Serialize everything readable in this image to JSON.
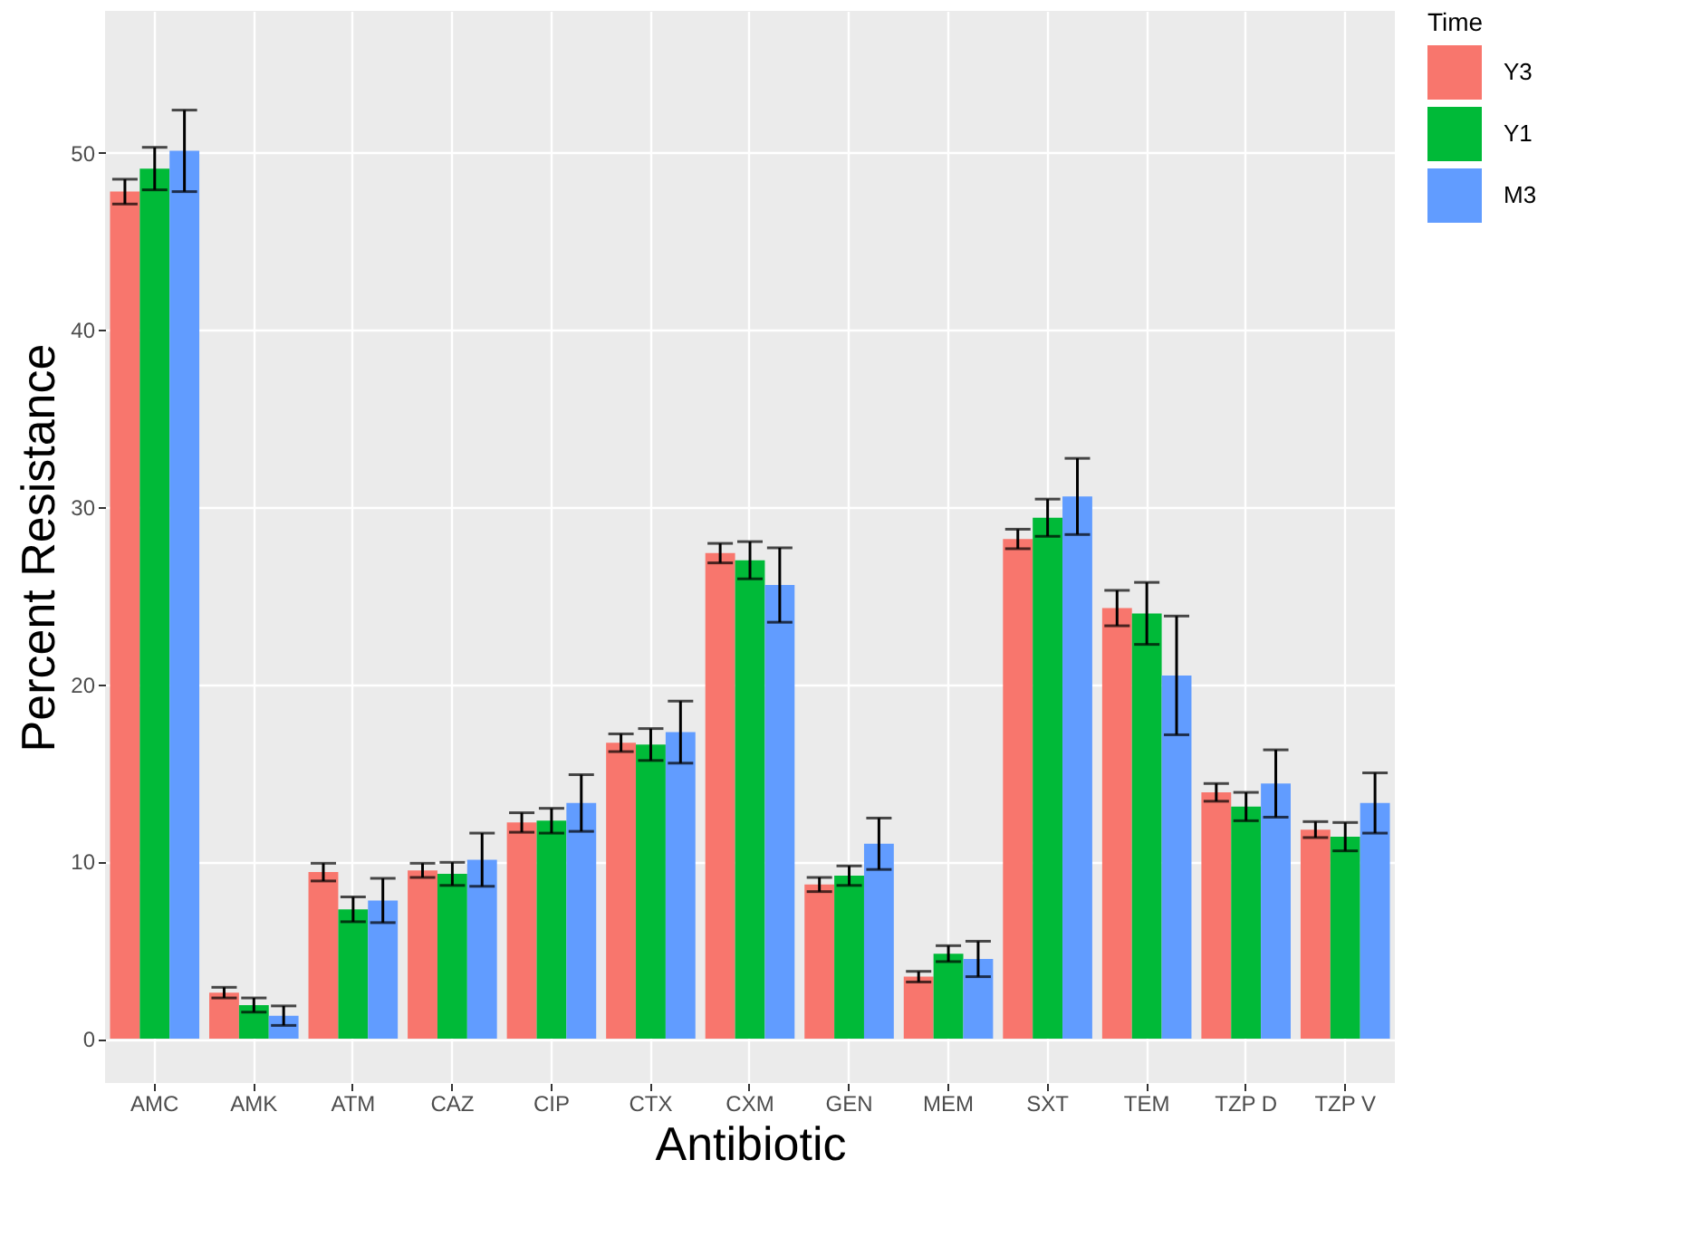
{
  "chart_data": {
    "type": "bar",
    "xlabel": "Antibiotic",
    "ylabel": "Percent Resistance",
    "legend_title": "Time",
    "legend": "right",
    "grid": true,
    "categories": [
      "AMC",
      "AMK",
      "ATM",
      "CAZ",
      "CIP",
      "CTX",
      "CXM",
      "GEN",
      "MEM",
      "SXT",
      "TEM",
      "TZP D",
      "TZP V"
    ],
    "ylim": [
      -2.5,
      58
    ],
    "yticks": [
      0,
      10,
      20,
      30,
      40,
      50
    ],
    "series": [
      {
        "name": "Y3",
        "color": "#f8766d",
        "values": [
          47.8,
          2.6,
          9.4,
          9.5,
          12.2,
          16.7,
          27.4,
          8.7,
          3.5,
          28.2,
          24.3,
          13.9,
          11.8
        ],
        "errors": [
          0.7,
          0.3,
          0.5,
          0.4,
          0.55,
          0.5,
          0.55,
          0.4,
          0.3,
          0.55,
          1.0,
          0.5,
          0.45
        ]
      },
      {
        "name": "Y1",
        "color": "#00ba38",
        "values": [
          49.1,
          1.9,
          7.3,
          9.3,
          12.3,
          16.6,
          27.0,
          9.2,
          4.8,
          29.4,
          24.0,
          13.1,
          11.4
        ],
        "errors": [
          1.2,
          0.4,
          0.7,
          0.65,
          0.7,
          0.9,
          1.05,
          0.55,
          0.45,
          1.05,
          1.75,
          0.8,
          0.8
        ]
      },
      {
        "name": "M3",
        "color": "#619cff",
        "values": [
          50.1,
          1.3,
          7.8,
          10.1,
          13.3,
          17.3,
          25.6,
          11.0,
          4.5,
          30.6,
          20.5,
          14.4,
          13.3
        ],
        "errors": [
          2.3,
          0.55,
          1.25,
          1.5,
          1.6,
          1.75,
          2.1,
          1.45,
          1.0,
          2.15,
          3.35,
          1.9,
          1.7
        ]
      }
    ]
  }
}
